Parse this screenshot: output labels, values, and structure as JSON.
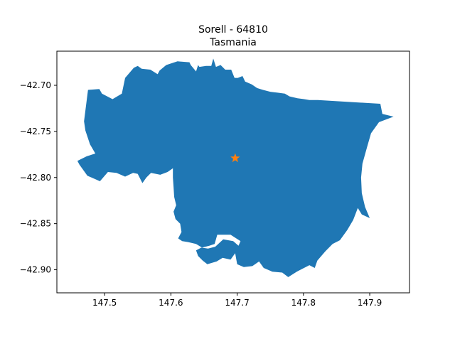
{
  "title": {
    "line1": "Sorell - 64810",
    "line2": "Tasmania"
  },
  "colors": {
    "region_fill": "#1f77b4",
    "marker": "#ff7f0e",
    "axes": "#000000",
    "background": "#ffffff"
  },
  "chart_data": {
    "type": "map",
    "region": "Sorell - 64810",
    "state": "Tasmania",
    "marker": {
      "shape": "star",
      "lon": 147.697,
      "lat": -42.779
    },
    "xlim": [
      147.428,
      147.96
    ],
    "ylim": [
      -42.925,
      -42.663
    ],
    "x_ticks": [
      147.5,
      147.6,
      147.7,
      147.8,
      147.9
    ],
    "x_tick_labels": [
      "147.5",
      "147.6",
      "147.7",
      "147.8",
      "147.9"
    ],
    "y_ticks": [
      -42.7,
      -42.75,
      -42.8,
      -42.85,
      -42.9
    ],
    "y_tick_labels": [
      "−42.70",
      "−42.75",
      "−42.80",
      "−42.85",
      "−42.90"
    ],
    "grid": false,
    "boundary": [
      [
        147.469,
        -42.739
      ],
      [
        147.475,
        -42.705
      ],
      [
        147.492,
        -42.704
      ],
      [
        147.496,
        -42.709
      ],
      [
        147.512,
        -42.715
      ],
      [
        147.526,
        -42.709
      ],
      [
        147.531,
        -42.692
      ],
      [
        147.544,
        -42.681
      ],
      [
        147.55,
        -42.679
      ],
      [
        147.556,
        -42.682
      ],
      [
        147.569,
        -42.683
      ],
      [
        147.58,
        -42.688
      ],
      [
        147.583,
        -42.684
      ],
      [
        147.593,
        -42.678
      ],
      [
        147.61,
        -42.674
      ],
      [
        147.628,
        -42.675
      ],
      [
        147.63,
        -42.678
      ],
      [
        147.638,
        -42.685
      ],
      [
        147.641,
        -42.678
      ],
      [
        147.643,
        -42.68
      ],
      [
        147.653,
        -42.679
      ],
      [
        147.661,
        -42.679
      ],
      [
        147.664,
        -42.671
      ],
      [
        147.668,
        -42.68
      ],
      [
        147.675,
        -42.678
      ],
      [
        147.682,
        -42.683
      ],
      [
        147.691,
        -42.683
      ],
      [
        147.696,
        -42.692
      ],
      [
        147.701,
        -42.692
      ],
      [
        147.708,
        -42.69
      ],
      [
        147.712,
        -42.696
      ],
      [
        147.722,
        -42.699
      ],
      [
        147.73,
        -42.703
      ],
      [
        147.739,
        -42.705
      ],
      [
        147.75,
        -42.707
      ],
      [
        147.761,
        -42.708
      ],
      [
        147.772,
        -42.709
      ],
      [
        147.779,
        -42.712
      ],
      [
        147.791,
        -42.714
      ],
      [
        147.801,
        -42.715
      ],
      [
        147.809,
        -42.716
      ],
      [
        147.822,
        -42.716
      ],
      [
        147.916,
        -42.72
      ],
      [
        147.919,
        -42.731
      ],
      [
        147.936,
        -42.734
      ],
      [
        147.914,
        -42.74
      ],
      [
        147.902,
        -42.752
      ],
      [
        147.896,
        -42.767
      ],
      [
        147.889,
        -42.785
      ],
      [
        147.887,
        -42.8
      ],
      [
        147.888,
        -42.817
      ],
      [
        147.893,
        -42.832
      ],
      [
        147.9,
        -42.844
      ],
      [
        147.888,
        -42.84
      ],
      [
        147.882,
        -42.833
      ],
      [
        147.875,
        -42.846
      ],
      [
        147.866,
        -42.857
      ],
      [
        147.855,
        -42.868
      ],
      [
        147.844,
        -42.872
      ],
      [
        147.833,
        -42.88
      ],
      [
        147.821,
        -42.89
      ],
      [
        147.817,
        -42.898
      ],
      [
        147.809,
        -42.895
      ],
      [
        147.79,
        -42.902
      ],
      [
        147.777,
        -42.908
      ],
      [
        147.768,
        -42.903
      ],
      [
        147.753,
        -42.902
      ],
      [
        147.74,
        -42.898
      ],
      [
        147.733,
        -42.891
      ],
      [
        147.723,
        -42.896
      ],
      [
        147.71,
        -42.897
      ],
      [
        147.7,
        -42.894
      ],
      [
        147.697,
        -42.882
      ],
      [
        147.69,
        -42.889
      ],
      [
        147.678,
        -42.887
      ],
      [
        147.669,
        -42.891
      ],
      [
        147.655,
        -42.894
      ],
      [
        147.648,
        -42.89
      ],
      [
        147.641,
        -42.885
      ],
      [
        147.638,
        -42.879
      ],
      [
        147.646,
        -42.876
      ],
      [
        147.656,
        -42.877
      ],
      [
        147.667,
        -42.875
      ],
      [
        147.679,
        -42.867
      ],
      [
        147.694,
        -42.869
      ],
      [
        147.702,
        -42.874
      ],
      [
        147.705,
        -42.869
      ],
      [
        147.69,
        -42.862
      ],
      [
        147.67,
        -42.862
      ],
      [
        147.666,
        -42.872
      ],
      [
        147.658,
        -42.874
      ],
      [
        147.647,
        -42.876
      ],
      [
        147.638,
        -42.872
      ],
      [
        147.626,
        -42.87
      ],
      [
        147.617,
        -42.869
      ],
      [
        147.611,
        -42.866
      ],
      [
        147.616,
        -42.859
      ],
      [
        147.614,
        -42.85
      ],
      [
        147.607,
        -42.845
      ],
      [
        147.604,
        -42.837
      ],
      [
        147.608,
        -42.83
      ],
      [
        147.605,
        -42.821
      ],
      [
        147.604,
        -42.81
      ],
      [
        147.603,
        -42.8
      ],
      [
        147.603,
        -42.79
      ],
      [
        147.595,
        -42.794
      ],
      [
        147.584,
        -42.797
      ],
      [
        147.57,
        -42.795
      ],
      [
        147.563,
        -42.8
      ],
      [
        147.557,
        -42.806
      ],
      [
        147.55,
        -42.796
      ],
      [
        147.543,
        -42.795
      ],
      [
        147.531,
        -42.799
      ],
      [
        147.518,
        -42.795
      ],
      [
        147.505,
        -42.794
      ],
      [
        147.493,
        -42.804
      ],
      [
        147.474,
        -42.798
      ],
      [
        147.462,
        -42.786
      ],
      [
        147.459,
        -42.782
      ],
      [
        147.473,
        -42.777
      ],
      [
        147.486,
        -42.774
      ],
      [
        147.478,
        -42.764
      ],
      [
        147.471,
        -42.749
      ]
    ]
  }
}
